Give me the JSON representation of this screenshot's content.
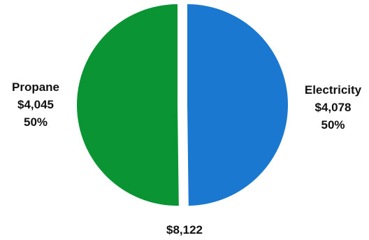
{
  "chart_data": {
    "type": "pie",
    "series": [
      {
        "name": "Propane",
        "value": 4045,
        "value_label": "$4,045",
        "percent_label": "50%",
        "color": "#1a78d0"
      },
      {
        "name": "Electricity",
        "value": 4078,
        "value_label": "$4,078",
        "percent_label": "50%",
        "color": "#0b9433"
      }
    ],
    "total_label": "$8,122",
    "legend": "none",
    "exploded": true
  }
}
